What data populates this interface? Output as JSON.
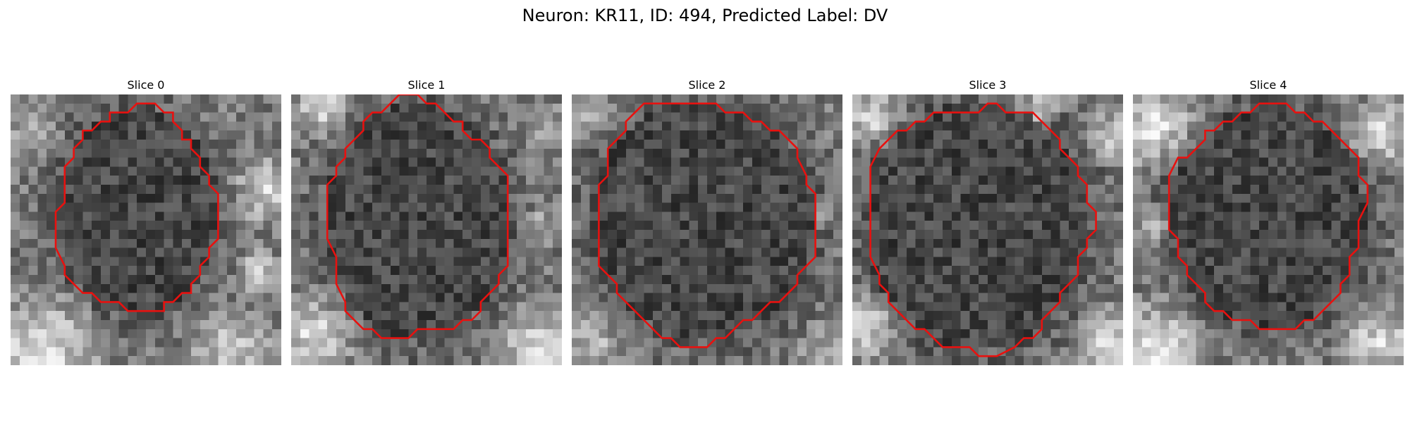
{
  "figure": {
    "title": "Neuron: KR11, ID: 494, Predicted Label: DV",
    "outline_color": "#e8110f",
    "cmap": "gray"
  },
  "slices": [
    {
      "title": "Slice 0"
    },
    {
      "title": "Slice 1"
    },
    {
      "title": "Slice 2"
    },
    {
      "title": "Slice 3"
    },
    {
      "title": "Slice 4"
    }
  ]
}
